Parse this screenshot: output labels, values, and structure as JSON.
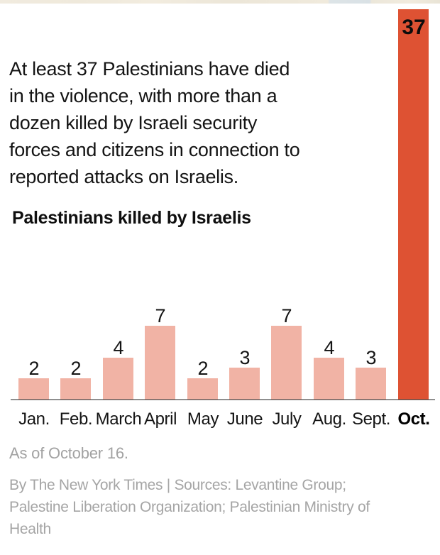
{
  "colors": {
    "bar_pink": "#f1b3a5",
    "bar_red": "#de5233",
    "text_dark": "#141414",
    "text_gray": "#a5a5a5",
    "axis_gray": "#8f8f8f",
    "photo_strip_beige": "#f1ebdf"
  },
  "intro": {
    "lines": [
      "At least 37 Palestinians have died",
      "in the violence, with more than a",
      "dozen killed by Israeli security",
      "forces and citizens in connection to",
      "reported attacks on Israelis."
    ]
  },
  "chart_data": {
    "type": "bar",
    "title": "Palestinians killed by Israelis",
    "categories": [
      "Jan.",
      "Feb.",
      "March",
      "April",
      "May",
      "June",
      "July",
      "Aug.",
      "Sept.",
      "Oct."
    ],
    "values": [
      2,
      2,
      4,
      7,
      2,
      3,
      7,
      4,
      3,
      37
    ],
    "highlight_index": 9,
    "bar_color": "#f1b3a5",
    "highlight_color": "#de5233",
    "xlabel": "",
    "ylabel": "",
    "ylim": [
      0,
      37
    ],
    "grid": false,
    "legend": "none",
    "value_labels_shown": true
  },
  "footer": {
    "as_of": "As of October 16.",
    "byline_lines": [
      "By The New York Times | Sources: Levantine Group;",
      "Palestine Liberation Organization; Palestinian Ministry of",
      "Health"
    ]
  }
}
